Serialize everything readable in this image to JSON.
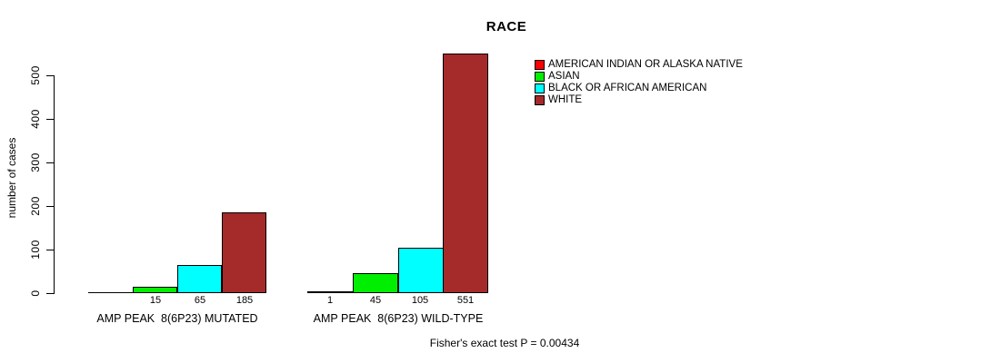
{
  "chart_data": {
    "type": "bar",
    "title": "RACE",
    "ylabel": "number of cases",
    "xlabel": "",
    "y_ticks": [
      0,
      100,
      200,
      300,
      400,
      500
    ],
    "ylim": [
      0,
      560
    ],
    "grid": false,
    "legend_position": "top-right",
    "categories": [
      "AMP PEAK  8(6P23) MUTATED",
      "AMP PEAK  8(6P23) WILD-TYPE"
    ],
    "series": [
      {
        "name": "AMERICAN INDIAN OR ALASKA NATIVE",
        "color": "#FF0000",
        "values": [
          0,
          1
        ]
      },
      {
        "name": "ASIAN",
        "color": "#00EE00",
        "values": [
          15,
          45
        ]
      },
      {
        "name": "BLACK OR AFRICAN AMERICAN",
        "color": "#00FFFF",
        "values": [
          65,
          105
        ]
      },
      {
        "name": "WHITE",
        "color": "#A52A2A",
        "values": [
          185,
          551
        ]
      }
    ],
    "bar_value_labels": {
      "AMP PEAK  8(6P23) MUTATED": [
        "",
        "15",
        "65",
        "185"
      ],
      "AMP PEAK  8(6P23) WILD-TYPE": [
        "1",
        "45",
        "105",
        "551"
      ]
    },
    "annotation": "Fisher's exact test P = 0.00434"
  }
}
